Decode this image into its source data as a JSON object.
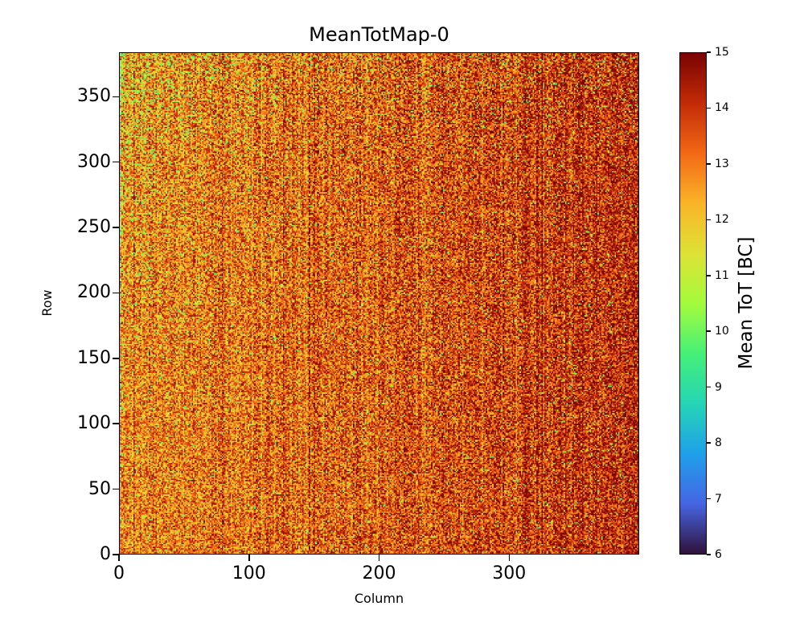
{
  "figure": {
    "background": "#ffffff",
    "text_color": "#000000"
  },
  "chart_data": {
    "type": "heatmap",
    "title": "MeanTotMap-0",
    "xlabel": "Column",
    "ylabel": "Row",
    "x_range": [
      0,
      400
    ],
    "y_range": [
      0,
      384
    ],
    "x_ticks": [
      0,
      100,
      200,
      300
    ],
    "y_ticks": [
      0,
      50,
      100,
      150,
      200,
      250,
      300,
      350
    ],
    "grid": {
      "cols": 400,
      "rows": 384
    },
    "colorbar": {
      "label": "Mean ToT [BC]",
      "min": 6,
      "max": 15,
      "ticks": [
        6,
        7,
        8,
        9,
        10,
        11,
        12,
        13,
        14,
        15
      ],
      "colormap": "turbo",
      "colormap_stops": [
        {
          "t": 0.0,
          "color": "#30123b"
        },
        {
          "t": 0.1,
          "color": "#4666e4"
        },
        {
          "t": 0.2,
          "color": "#1fa1ea"
        },
        {
          "t": 0.3,
          "color": "#25d5b6"
        },
        {
          "t": 0.4,
          "color": "#46f078"
        },
        {
          "t": 0.5,
          "color": "#a4fc3c"
        },
        {
          "t": 0.6,
          "color": "#dee236"
        },
        {
          "t": 0.7,
          "color": "#fab428"
        },
        {
          "t": 0.8,
          "color": "#f36916"
        },
        {
          "t": 0.9,
          "color": "#c42c07"
        },
        {
          "t": 1.0,
          "color": "#7a0403"
        }
      ]
    },
    "value_stats": {
      "apparent_min": 9.4,
      "apparent_max": 15,
      "apparent_mean": 13.4,
      "pattern": "Per-pixel noisy map: mostly 12-15 (orange to dark red) with scattered green pixels around 10-11; green density highest in upper-left corner and along the left edge; values trend toward saturated dark red (15) on the right third; faint vertical column striping across the map."
    },
    "synthesis": {
      "seed": 1337,
      "base_value": 13.0,
      "column_gradient_amplitude": 1.25,
      "column_gradient_power": 1.4,
      "column_stripe_amplitude": 0.7,
      "dark_column_probability": 0.06,
      "dark_column_boost": 0.6,
      "light_column_probability": 0.05,
      "light_column_drop": 0.5,
      "pixel_noise_amplitude": 3.2,
      "speckle_base_probability": 0.035,
      "speckle_topleft_probability": 0.28,
      "speckle_column_scale": 70,
      "speckle_top_probability": 0.05,
      "speckle_top_start_row": 290,
      "left_edge_columns": 3,
      "left_edge_probability": 0.3,
      "speckle_value_min": 9.4,
      "speckle_value_span": 2.0,
      "clamp_min": 6,
      "clamp_max": 15
    }
  }
}
